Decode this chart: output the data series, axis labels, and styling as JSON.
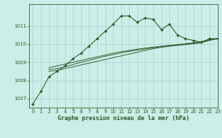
{
  "bg_color": "#cceee8",
  "grid_color": "#aacccc",
  "line_color": "#2d5a27",
  "title": "Graphe pression niveau de la mer (hPa)",
  "xmin": -0.5,
  "xmax": 23,
  "ymin": 1006.5,
  "ymax": 1012.2,
  "yticks": [
    1007,
    1008,
    1009,
    1010,
    1011
  ],
  "xticks": [
    0,
    1,
    2,
    3,
    4,
    5,
    6,
    7,
    8,
    9,
    10,
    11,
    12,
    13,
    14,
    15,
    16,
    17,
    18,
    19,
    20,
    21,
    22,
    23
  ],
  "line1_x": [
    0,
    1,
    2,
    3,
    4,
    5,
    6,
    7,
    8,
    9,
    10,
    11,
    12,
    13,
    14,
    15,
    16,
    17,
    18,
    19,
    20,
    21,
    22,
    23
  ],
  "line1_y": [
    1006.7,
    1007.4,
    1008.2,
    1008.5,
    1008.8,
    1009.2,
    1009.5,
    1009.9,
    1010.3,
    1010.7,
    1011.1,
    1011.55,
    1011.55,
    1011.2,
    1011.45,
    1011.35,
    1010.8,
    1011.1,
    1010.5,
    1010.3,
    1010.2,
    1010.1,
    1010.3,
    1010.3
  ],
  "line2_x": [
    2,
    3,
    4,
    5,
    6,
    7,
    8,
    9,
    10,
    11,
    12,
    13,
    14,
    15,
    16,
    17,
    18,
    19,
    20,
    21,
    22,
    23
  ],
  "line2_y": [
    1008.5,
    1008.55,
    1008.65,
    1008.75,
    1008.85,
    1008.95,
    1009.05,
    1009.15,
    1009.25,
    1009.35,
    1009.45,
    1009.55,
    1009.65,
    1009.75,
    1009.82,
    1009.88,
    1009.93,
    1009.97,
    1010.02,
    1010.08,
    1010.2,
    1010.3
  ],
  "line3_x": [
    2,
    3,
    4,
    5,
    6,
    7,
    8,
    9,
    10,
    11,
    12,
    13,
    14,
    15,
    16,
    17,
    18,
    19,
    20,
    21,
    22,
    23
  ],
  "line3_y": [
    1008.6,
    1008.65,
    1008.75,
    1008.88,
    1009.0,
    1009.1,
    1009.22,
    1009.33,
    1009.42,
    1009.52,
    1009.6,
    1009.67,
    1009.73,
    1009.8,
    1009.86,
    1009.92,
    1009.96,
    1010.0,
    1010.05,
    1010.12,
    1010.22,
    1010.3
  ],
  "line4_x": [
    2,
    3,
    4,
    5,
    6,
    7,
    8,
    9,
    10,
    11,
    12,
    13,
    14,
    15,
    16,
    17,
    18,
    19,
    20,
    21,
    22,
    23
  ],
  "line4_y": [
    1008.7,
    1008.8,
    1008.9,
    1009.0,
    1009.1,
    1009.2,
    1009.3,
    1009.4,
    1009.5,
    1009.58,
    1009.65,
    1009.72,
    1009.78,
    1009.83,
    1009.88,
    1009.93,
    1009.97,
    1010.02,
    1010.07,
    1010.14,
    1010.24,
    1010.3
  ]
}
